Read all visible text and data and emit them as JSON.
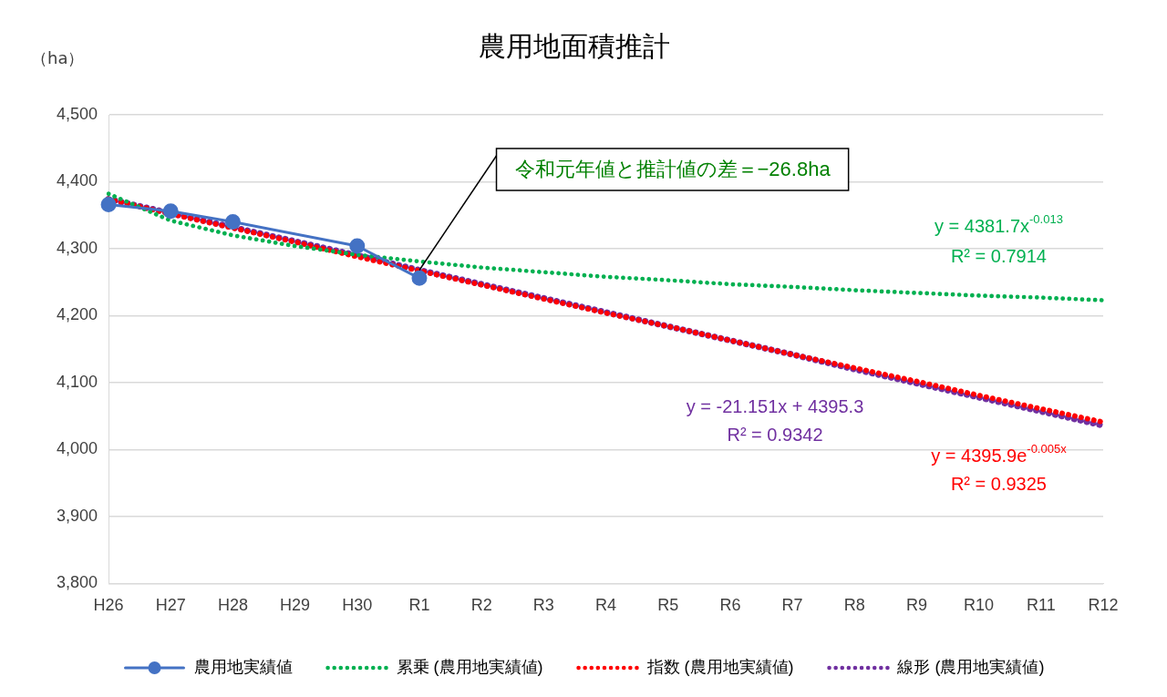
{
  "chart_data": {
    "type": "line",
    "title": "農用地面積推計",
    "ylabel": "（ha）",
    "categories": [
      "H26",
      "H27",
      "H28",
      "H29",
      "H30",
      "R1",
      "R2",
      "R3",
      "R4",
      "R5",
      "R6",
      "R7",
      "R8",
      "R9",
      "R10",
      "R11",
      "R12"
    ],
    "ylim": [
      3800,
      4500
    ],
    "yticks": [
      {
        "value": 3800,
        "label": "3,800"
      },
      {
        "value": 3900,
        "label": "3,900"
      },
      {
        "value": 4000,
        "label": "4,000"
      },
      {
        "value": 4100,
        "label": "4,100"
      },
      {
        "value": 4200,
        "label": "4,200"
      },
      {
        "value": 4300,
        "label": "4,300"
      },
      {
        "value": 4400,
        "label": "4,400"
      },
      {
        "value": 4500,
        "label": "4,500"
      }
    ],
    "grid": "y",
    "legend": "bottom",
    "series": [
      {
        "name": "農用地実績値",
        "color": "#4472c4",
        "marker": "circle",
        "line_style": "solid",
        "values": [
          4366,
          4356,
          4340,
          null,
          4304,
          4256,
          null,
          null,
          null,
          null,
          null,
          null,
          null,
          null,
          null,
          null,
          null
        ]
      },
      {
        "name": "累乗 (農用地実績値)",
        "color": "#00b050",
        "marker": "none",
        "line_style": "dotted",
        "values": [
          4382,
          4342,
          4320,
          4304,
          4291,
          4281,
          4272,
          4265,
          4258,
          4253,
          4247,
          4243,
          4238,
          4234,
          4230,
          4227,
          4223
        ]
      },
      {
        "name": "指数 (農用地実績値)",
        "color": "#ff0000",
        "marker": "none",
        "line_style": "dotted",
        "values": [
          4374,
          4352,
          4331,
          4310,
          4288,
          4267,
          4246,
          4225,
          4204,
          4184,
          4163,
          4142,
          4122,
          4102,
          4081,
          4061,
          4041
        ]
      },
      {
        "name": "線形 (農用地実績値)",
        "color": "#7030a0",
        "marker": "none",
        "line_style": "dotted",
        "values": [
          4374,
          4353,
          4332,
          4311,
          4290,
          4268,
          4247,
          4226,
          4205,
          4184,
          4163,
          4142,
          4120,
          4099,
          4078,
          4057,
          4036
        ]
      }
    ],
    "annotations": [
      {
        "text": "令和元年値と推計値の差＝−26.8ha",
        "x": "R1",
        "y": 4268
      },
      "y = 4381.7x$^{-0.013}$",
      "R² = 0.7914",
      "y = 4395.9e$^{-0.005x}$",
      "R² = 0.9325",
      "y = -21.151x + 4395.3",
      "R² = 0.9342"
    ]
  }
}
